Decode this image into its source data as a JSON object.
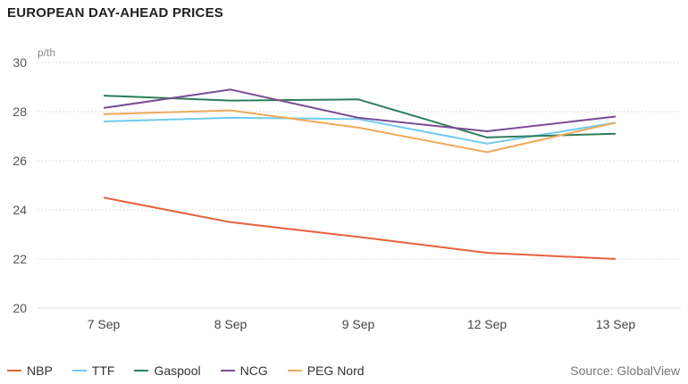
{
  "title": "EUROPEAN DAY-AHEAD PRICES",
  "source": "Source: GlobalView",
  "chart_data": {
    "type": "line",
    "title": "EUROPEAN DAY-AHEAD PRICES",
    "unit": "p/th",
    "categories": [
      "7 Sep",
      "8 Sep",
      "9 Sep",
      "12 Sep",
      "13 Sep"
    ],
    "ylim": [
      20,
      30
    ],
    "yticks": [
      20,
      22,
      24,
      26,
      28,
      30
    ],
    "grid": true,
    "legend_position": "bottom-left",
    "series": [
      {
        "name": "NBP",
        "color": "#e8603c",
        "values": [
          24.5,
          23.5,
          22.9,
          22.25,
          22.0
        ]
      },
      {
        "name": "TTF",
        "color": "#6fcbee",
        "values": [
          27.6,
          27.75,
          27.7,
          26.7,
          27.55
        ]
      },
      {
        "name": "Gaspool",
        "color": "#2e7d5b",
        "values": [
          28.65,
          28.45,
          28.5,
          26.95,
          27.1
        ]
      },
      {
        "name": "NCG",
        "color": "#7a4d94",
        "values": [
          28.15,
          28.9,
          27.75,
          27.2,
          27.8
        ]
      },
      {
        "name": "PEG Nord",
        "color": "#f0a95a",
        "values": [
          27.9,
          28.05,
          27.35,
          26.35,
          27.55
        ]
      }
    ]
  }
}
